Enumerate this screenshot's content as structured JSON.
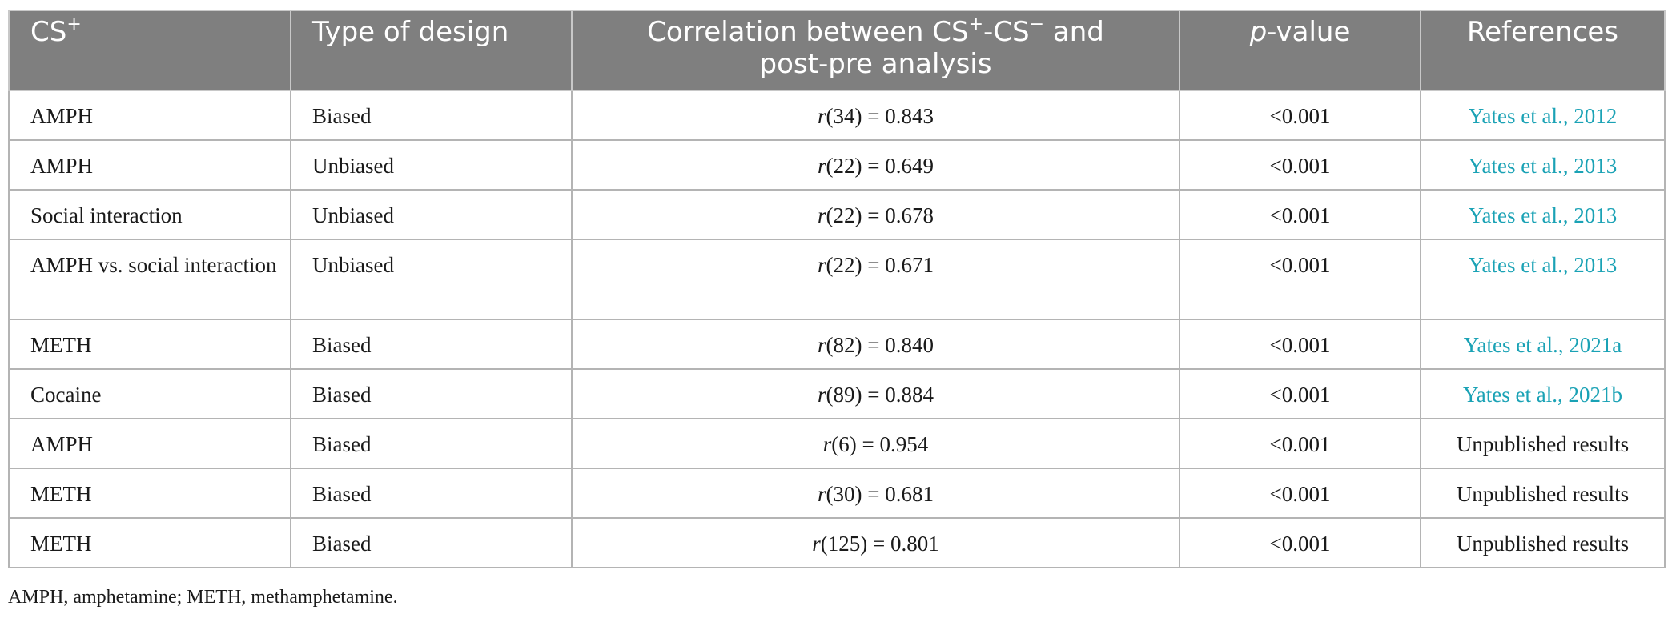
{
  "table": {
    "headers": {
      "col1_main": "CS",
      "col1_sup": "+",
      "col2": "Type of design",
      "col3_a": "Correlation between CS",
      "col3_sup1": "+",
      "col3_b": "-CS",
      "col3_sup2": "−",
      "col3_c": " and",
      "col3_line2": "post-pre analysis",
      "col4_italic": "p",
      "col4_rest": "-value",
      "col5": "References"
    },
    "rows": [
      {
        "cs": "AMPH",
        "design": "Biased",
        "r_sym": "r",
        "r_val": "(34) = 0.843",
        "p": "<0.001",
        "ref": "Yates et al., 2012",
        "ref_link": true
      },
      {
        "cs": "AMPH",
        "design": "Unbiased",
        "r_sym": "r",
        "r_val": "(22) = 0.649",
        "p": "<0.001",
        "ref": "Yates et al., 2013",
        "ref_link": true
      },
      {
        "cs": "Social interaction",
        "design": "Unbiased",
        "r_sym": "r",
        "r_val": "(22) = 0.678",
        "p": "<0.001",
        "ref": "Yates et al., 2013",
        "ref_link": true
      },
      {
        "cs": "AMPH vs. social interaction",
        "design": "Unbiased",
        "r_sym": "r",
        "r_val": "(22) = 0.671",
        "p": "<0.001",
        "ref": "Yates et al., 2013",
        "ref_link": true
      },
      {
        "cs": "METH",
        "design": "Biased",
        "r_sym": "r",
        "r_val": "(82) = 0.840",
        "p": "<0.001",
        "ref": "Yates et al., 2021a",
        "ref_link": true
      },
      {
        "cs": "Cocaine",
        "design": "Biased",
        "r_sym": "r",
        "r_val": "(89) = 0.884",
        "p": "<0.001",
        "ref": "Yates et al., 2021b",
        "ref_link": true
      },
      {
        "cs": "AMPH",
        "design": "Biased",
        "r_sym": "r",
        "r_val": "(6) = 0.954",
        "p": "<0.001",
        "ref": "Unpublished results",
        "ref_link": false
      },
      {
        "cs": "METH",
        "design": "Biased",
        "r_sym": "r",
        "r_val": "(30) = 0.681",
        "p": "<0.001",
        "ref": "Unpublished results",
        "ref_link": false
      },
      {
        "cs": "METH",
        "design": "Biased",
        "r_sym": "r",
        "r_val": "(125) = 0.801",
        "p": "<0.001",
        "ref": "Unpublished results",
        "ref_link": false
      }
    ]
  },
  "footnote": "AMPH, amphetamine; METH, methamphetamine.",
  "colors": {
    "header_bg": "#7f7f7f",
    "link": "#1aa2b5"
  }
}
